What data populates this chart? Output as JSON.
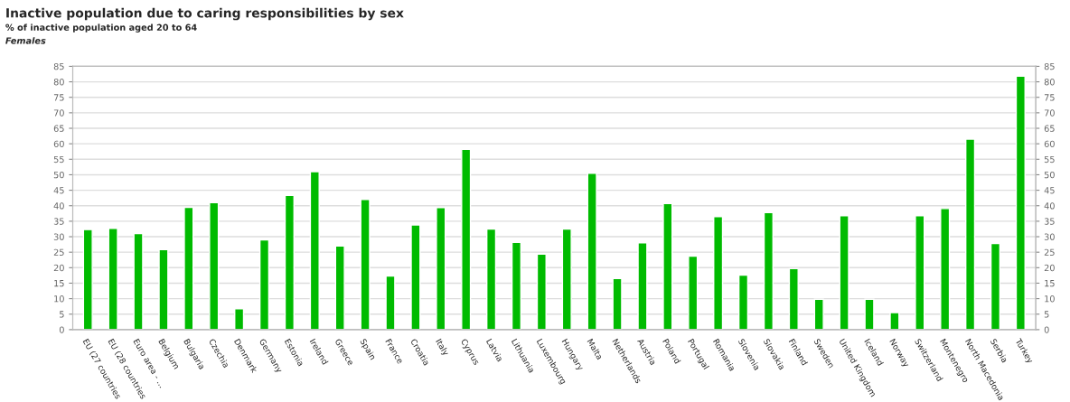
{
  "chart_data": {
    "type": "bar",
    "title": "Inactive population due to caring responsibilities by sex",
    "subtitle": "% of inactive population aged 20 to 64",
    "annotations": [
      "Females"
    ],
    "categories": [
      "EU (27 countries",
      "EU (28 countries",
      "Euro area - ...",
      "Belgium",
      "Bulgaria",
      "Czechia",
      "Denmark",
      "Germany",
      "Estonia",
      "Ireland",
      "Greece",
      "Spain",
      "France",
      "Croatia",
      "Italy",
      "Cyprus",
      "Latvia",
      "Lithuania",
      "Luxembourg",
      "Hungary",
      "Malta",
      "Netherlands",
      "Austria",
      "Poland",
      "Portugal",
      "Romania",
      "Slovenia",
      "Slovakia",
      "Finland",
      "Sweden",
      "United Kingdom",
      "Iceland",
      "Norway",
      "Switzerland",
      "Montenegro",
      "North Macedonia",
      "Serbia",
      "Turkey"
    ],
    "values": [
      32.3,
      32.7,
      31,
      25.8,
      39.5,
      41,
      6.7,
      29,
      43.3,
      51,
      27,
      42,
      17.3,
      33.8,
      39.4,
      58.2,
      32.5,
      28.2,
      24.4,
      32.5,
      50.5,
      16.5,
      28,
      40.7,
      23.7,
      36.5,
      17.6,
      37.8,
      19.7,
      9.8,
      36.8,
      9.8,
      5.5,
      36.8,
      39.1,
      61.5,
      27.8,
      81.8
    ],
    "color": "#00bb00",
    "ylim": [
      0,
      85
    ],
    "yticks": [
      0,
      5,
      10,
      15,
      20,
      25,
      30,
      35,
      40,
      45,
      50,
      55,
      60,
      65,
      70,
      75,
      80,
      85
    ],
    "y2lim": [
      0,
      85
    ],
    "y2ticks": [
      0,
      5,
      10,
      15,
      20,
      25,
      30,
      35,
      40,
      45,
      50,
      55,
      60,
      65,
      70,
      75,
      80,
      85
    ],
    "grid": "y",
    "legend": false
  }
}
